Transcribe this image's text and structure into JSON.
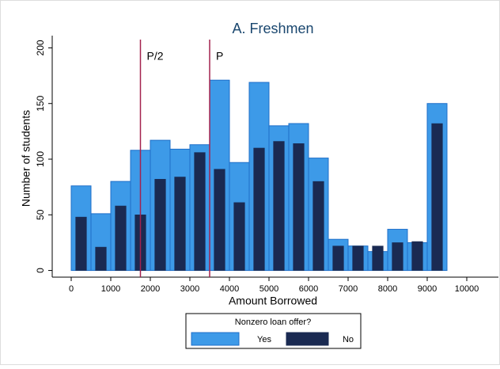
{
  "chart_data": {
    "type": "histogram",
    "title": "A. Freshmen",
    "x_label": "Amount Borrowed",
    "y_label": "Number of students",
    "bins": [
      0,
      500,
      1000,
      1500,
      2000,
      2500,
      3000,
      3500,
      4000,
      4500,
      5000,
      5500,
      6000,
      6500,
      7000,
      7500,
      8000,
      8500,
      9000,
      9500
    ],
    "series": [
      {
        "name": "Yes",
        "color": "#3d9ae8",
        "values": [
          76,
          51,
          80,
          108,
          117,
          109,
          113,
          171,
          97,
          169,
          130,
          132,
          101,
          28,
          22,
          17,
          37,
          25,
          150
        ]
      },
      {
        "name": "No",
        "color": "#1a2a52",
        "values": [
          48,
          21,
          58,
          50,
          82,
          84,
          106,
          91,
          61,
          110,
          116,
          114,
          80,
          22,
          22,
          22,
          25,
          26,
          132
        ]
      }
    ],
    "annotations": [
      {
        "text": "P/2",
        "x": 1750,
        "color": "#a3224f"
      },
      {
        "text": "P",
        "x": 3500,
        "color": "#a3224f"
      }
    ],
    "legend_title": "Nonzero loan offer?",
    "legend_position": "bottom",
    "xlim": [
      -480,
      10800
    ],
    "ylim": [
      -6,
      211
    ],
    "xticks": [
      0,
      1000,
      2000,
      3000,
      4000,
      5000,
      6000,
      7000,
      8000,
      9000,
      10000
    ],
    "yticks": [
      0,
      50,
      100,
      150,
      200
    ],
    "grid": false
  }
}
